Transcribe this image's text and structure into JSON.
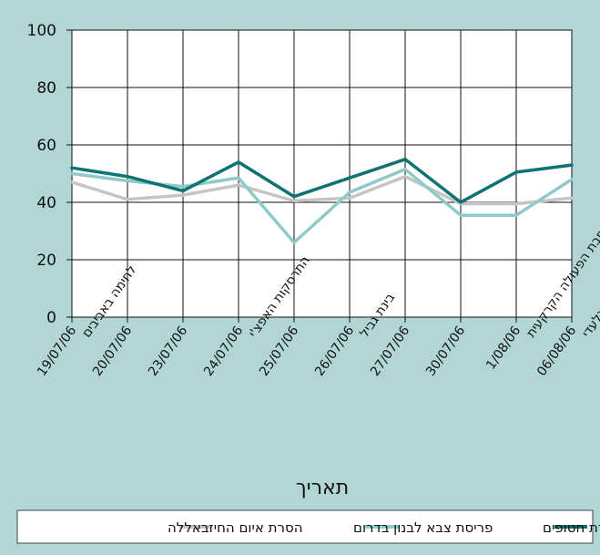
{
  "chart_data": {
    "type": "line",
    "xlabel": "תאריך",
    "ylabel": "",
    "ylim": [
      0,
      100
    ],
    "yticks": [
      0,
      20,
      40,
      60,
      80,
      100
    ],
    "grid": true,
    "legend_position": "bottom",
    "categories": [
      [
        "19/07/06",
        "לחימה באביבים"
      ],
      [
        "20/07/06"
      ],
      [
        "23/07/06"
      ],
      [
        "24/07/06",
        "התרסקות האפצ'י"
      ],
      [
        "25/07/06"
      ],
      [
        "26/07/06",
        "בינת גביל"
      ],
      [
        "27/07/06"
      ],
      [
        "30/07/06"
      ],
      [
        "1/08/06",
        "הרחבת הפעולה הקרקעית"
      ],
      [
        "06/08/06",
        "כפר גלעדי"
      ]
    ],
    "series": [
      {
        "name": "החזרת חטופים",
        "color": "#0d7272",
        "values": [
          52,
          49,
          44,
          54,
          42,
          48.5,
          55,
          40,
          50.5,
          53
        ]
      },
      {
        "name": "פריסת צבא לבנון בדרום",
        "color": "#8fcaca",
        "values": [
          50,
          47.5,
          45.5,
          48.5,
          26,
          43.5,
          51.5,
          35.5,
          35.5,
          48
        ]
      },
      {
        "name": "הסרת איום החיזבאללה",
        "color": "#c5c5c5",
        "values": [
          47,
          41,
          42.5,
          46,
          40.5,
          41.5,
          49,
          39.5,
          39.5,
          41.5
        ]
      }
    ]
  }
}
